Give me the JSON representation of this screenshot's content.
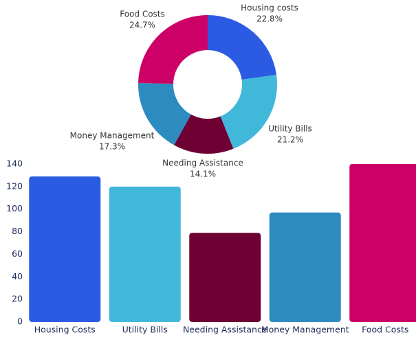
{
  "chart_data": [
    {
      "type": "donut",
      "categories": [
        "Housing costs",
        "Utility Bills",
        "Needing Assistance",
        "Money Management",
        "Food Costs"
      ],
      "values": [
        22.8,
        21.2,
        14.1,
        17.3,
        24.7
      ],
      "value_labels": [
        "22.8%",
        "21.2%",
        "14.1%",
        "17.3%",
        "24.7%"
      ],
      "colors": [
        "#2c5be3",
        "#41b7d9",
        "#6e0033",
        "#2e8bbf",
        "#cc0066"
      ]
    },
    {
      "type": "bar",
      "categories": [
        "Housing Costs",
        "Utility Bills",
        "Needing Assistance",
        "Money Management",
        "Food Costs"
      ],
      "values": [
        129,
        120,
        79,
        97,
        140
      ],
      "colors": [
        "#2c5be3",
        "#41b7d9",
        "#6e0033",
        "#2e8bbf",
        "#cc0066"
      ],
      "ylim": [
        0,
        140
      ],
      "yticks": [
        0,
        20,
        40,
        60,
        80,
        100,
        120,
        140
      ]
    }
  ]
}
